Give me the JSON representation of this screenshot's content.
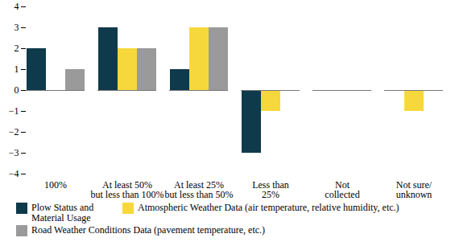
{
  "chart_data": {
    "type": "bar",
    "categories": [
      "100%",
      "At least 50%\nbut less than 100%",
      "At least 25%\nbut less than 50%",
      "Less than\n25%",
      "Not\ncollected",
      "Not sure/\nunknown"
    ],
    "series": [
      {
        "name": "Plow Status and Material Usage",
        "color": "#0f3a4b",
        "values": [
          2,
          3,
          1,
          -3,
          0,
          0
        ]
      },
      {
        "name": "Atmospheric Weather Data (air temperature, relative humidity, etc.)",
        "color": "#f7d83c",
        "values": [
          0,
          2,
          3,
          -1,
          0,
          -1
        ]
      },
      {
        "name": "Road Weather Conditions Data (pavement temperature, etc.)",
        "color": "#9a9a9a",
        "values": [
          1,
          2,
          3,
          0,
          0,
          0
        ]
      }
    ],
    "ylim": [
      -4,
      4
    ],
    "yticks": [
      -4,
      -3,
      -2,
      -1,
      0,
      1,
      2,
      3,
      4
    ],
    "grid": false,
    "legend": "bottom"
  }
}
